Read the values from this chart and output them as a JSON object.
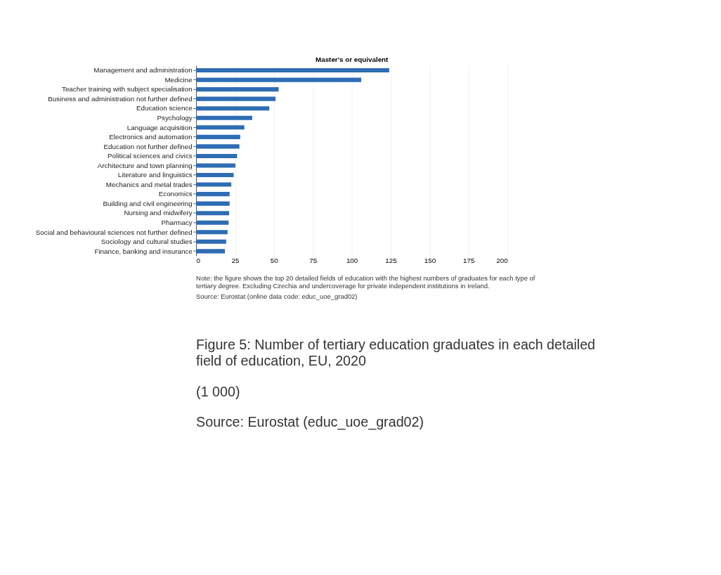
{
  "chart_data": {
    "type": "bar",
    "orientation": "horizontal",
    "title": "Master's or equivalent",
    "categories": [
      "Management and administration",
      "Medicine",
      "Teacher training with subject specialisation",
      "Business and administration not further defined",
      "Education science",
      "Psychology",
      "Language acquisition",
      "Electronics and automation",
      "Education not further defined",
      "Political sciences and civics",
      "Architecture and town planning",
      "Literature and linguistics",
      "Mechanics and metal trades",
      "Economics",
      "Building and civil engineering",
      "Nursing and midwifery",
      "Pharmacy",
      "Social and behavioural sciences not further defined",
      "Sociology and cultural studies",
      "Finance, banking and insurance"
    ],
    "values": [
      124,
      106,
      53,
      51,
      47,
      36,
      31,
      28.3,
      27.8,
      26.3,
      25.2,
      24.1,
      22.6,
      21.5,
      21.5,
      21.2,
      20.9,
      20.2,
      19.3,
      18.5
    ],
    "color": "#2e6db4",
    "xlim": [
      0,
      200
    ],
    "xticks": [
      0,
      25,
      50,
      75,
      100,
      125,
      150,
      175,
      200
    ],
    "grid": "x",
    "annotations": [
      "Note: the figure shows the top 20 detailed fields of education with the highest numbers of graduates for each type of tertiary degree. Excluding Czechia and undercoverage for private independent institutions in Ireland.",
      "Source: Eurostat (online data code: educ_uoe_grad02)",
      "Figure 5: Number of tertiary education graduates in each detailed field of education, EU, 2020",
      "(1 000)",
      "Source: Eurostat (educ_uoe_grad02)"
    ]
  }
}
